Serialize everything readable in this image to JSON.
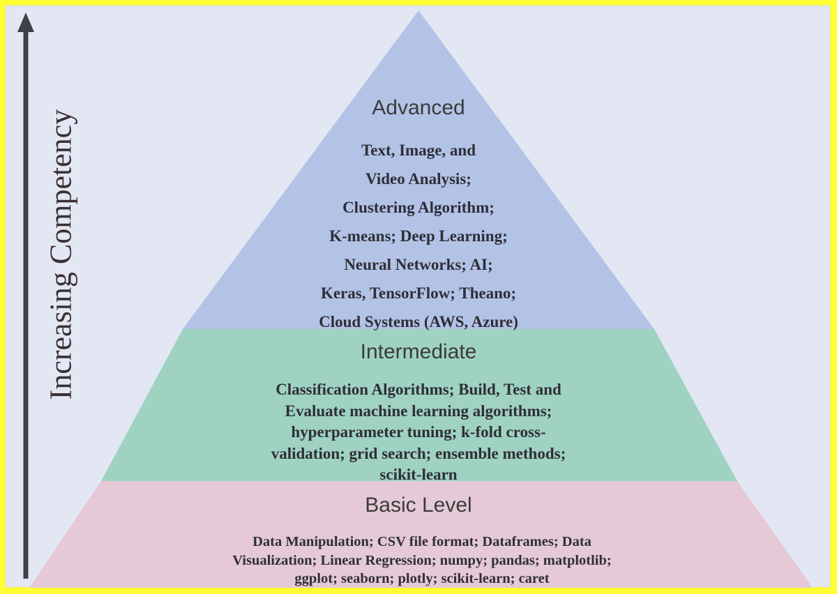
{
  "axis": {
    "label": "Increasing Competency"
  },
  "tiers": {
    "advanced": {
      "title": "Advanced",
      "lines": [
        "Text, Image, and",
        "Video Analysis;",
        "Clustering Algorithm;",
        "K-means; Deep Learning;",
        "Neural Networks; AI;",
        "Keras, TensorFlow; Theano;",
        "Cloud Systems (AWS, Azure)"
      ],
      "color": "#b3c3e6"
    },
    "intermediate": {
      "title": "Intermediate",
      "lines": [
        "Classification Algorithms; Build, Test and",
        "Evaluate machine learning algorithms;",
        "hyperparameter tuning; k-fold cross-",
        "validation; grid search; ensemble methods;",
        "scikit-learn"
      ],
      "color": "#9fd2c1"
    },
    "basic": {
      "title": "Basic Level",
      "lines": [
        "Data Manipulation; CSV file format; Dataframes; Data",
        "Visualization; Linear Regression; numpy; pandas; matplotlib;",
        "ggplot; seaborn; plotly; scikit-learn; caret"
      ],
      "color": "#e5c9d6"
    }
  },
  "colors": {
    "background": "#e2e7f3",
    "border": "#ffff33",
    "arrow": "#3f3f46"
  }
}
